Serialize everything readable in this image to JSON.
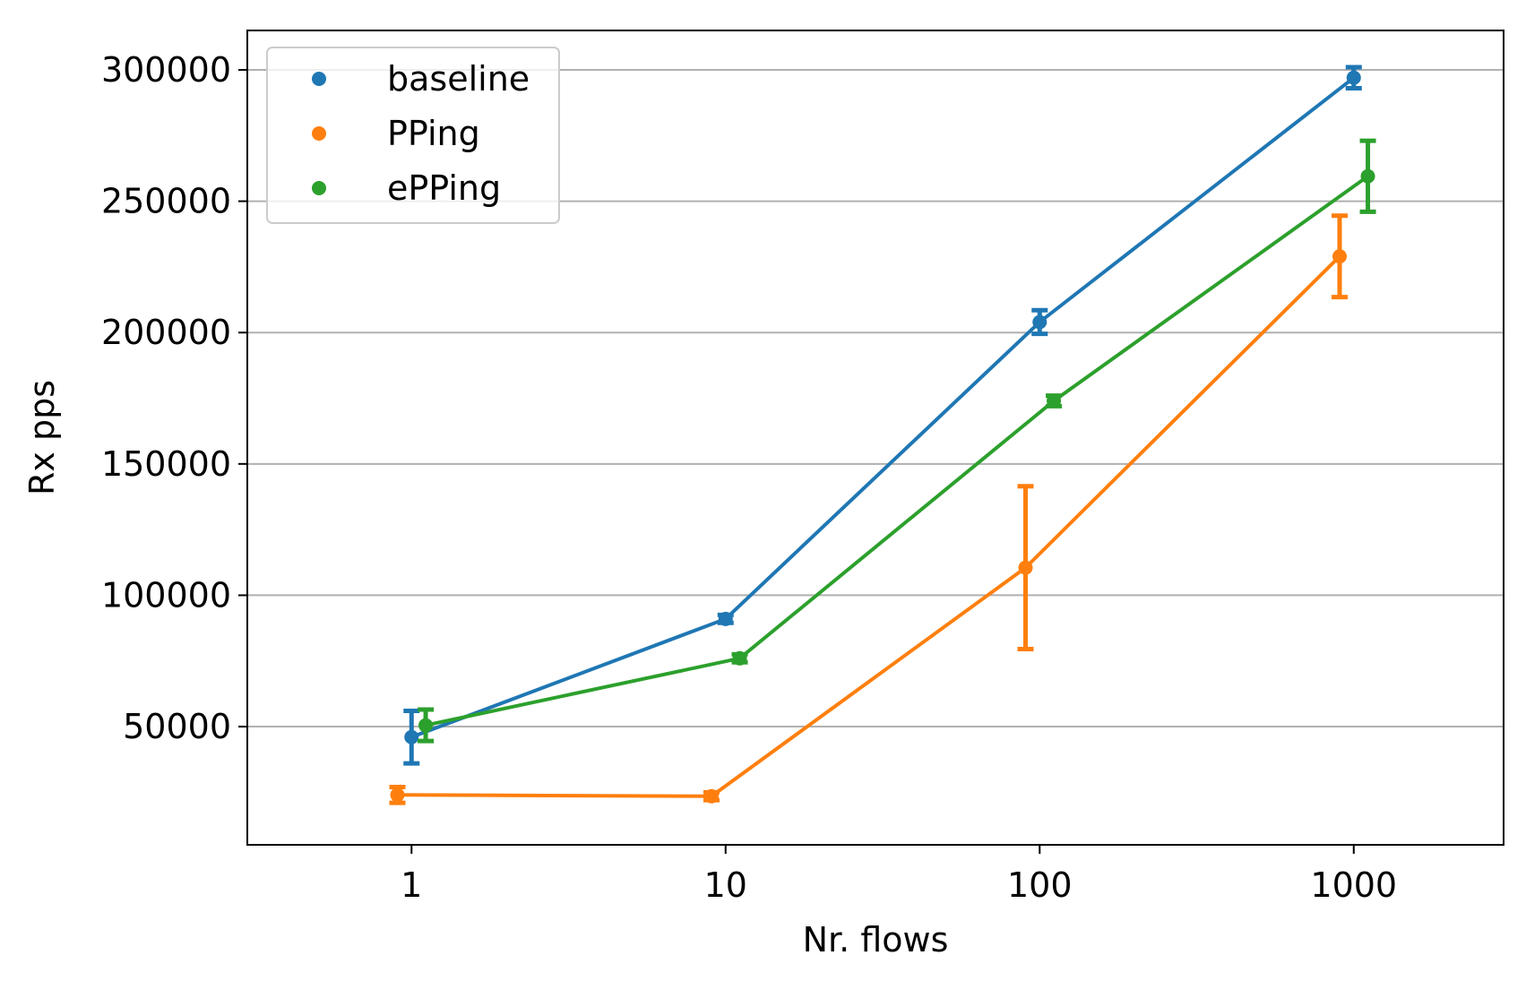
{
  "chart_data": {
    "type": "line",
    "xlabel": "Nr. flows",
    "ylabel": "Rx pps",
    "x_scale": "log",
    "xlim": [
      0.3,
      3000
    ],
    "ylim": [
      5000,
      315000
    ],
    "x_ticks": [
      1,
      10,
      100,
      1000
    ],
    "x_tick_labels": [
      "1",
      "10",
      "100",
      "1000"
    ],
    "y_ticks": [
      50000,
      100000,
      150000,
      200000,
      250000,
      300000
    ],
    "y_tick_labels": [
      "50000",
      "100000",
      "150000",
      "200000",
      "250000",
      "300000"
    ],
    "grid": "horizontal",
    "legend_position": "top-left",
    "series": [
      {
        "name": "baseline",
        "color": "#1f77b4",
        "points": [
          {
            "x": 1,
            "y": 46000,
            "err": 10000
          },
          {
            "x": 10,
            "y": 91000,
            "err": 1500
          },
          {
            "x": 100,
            "y": 204000,
            "err": 4500
          },
          {
            "x": 1000,
            "y": 297000,
            "err": 4000
          }
        ]
      },
      {
        "name": "PPing",
        "color": "#ff7f0e",
        "points": [
          {
            "x": 1,
            "y": 24000,
            "err": 3000
          },
          {
            "x": 10,
            "y": 23500,
            "err": 1500
          },
          {
            "x": 100,
            "y": 110500,
            "err": 31000
          },
          {
            "x": 1000,
            "y": 229000,
            "err": 15500
          }
        ]
      },
      {
        "name": "ePPing",
        "color": "#2ca02c",
        "points": [
          {
            "x": 1,
            "y": 50500,
            "err": 6000
          },
          {
            "x": 10,
            "y": 76000,
            "err": 1500
          },
          {
            "x": 100,
            "y": 174000,
            "err": 2000
          },
          {
            "x": 1000,
            "y": 259500,
            "err": 13500
          }
        ]
      }
    ]
  }
}
